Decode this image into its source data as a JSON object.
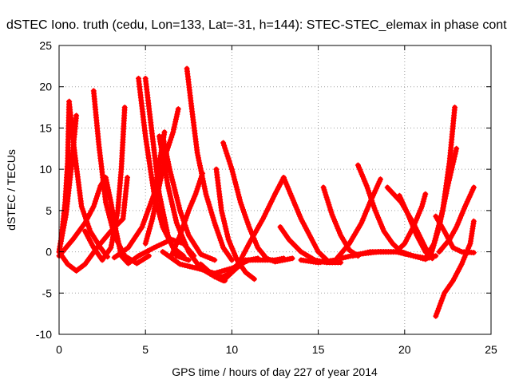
{
  "chart_data": {
    "type": "scatter",
    "title": "dSTEC Iono. truth (cedu, Lon=133, Lat=-31, h=144): STEC-STEC_elemax in phase cont",
    "xlabel": "GPS time / hours of day 227 of year 2014",
    "ylabel": "dSTEC  / TECUs",
    "xlim": [
      0,
      25
    ],
    "ylim": [
      -10,
      25
    ],
    "xticks": [
      "0",
      "5",
      "10",
      "15",
      "20",
      "25"
    ],
    "yticks": [
      "-10",
      "-5",
      "0",
      "5",
      "10",
      "15",
      "20",
      "25"
    ],
    "grid": true,
    "marker": "+",
    "color": "#ff0000",
    "series": [
      {
        "points": [
          [
            0.0,
            0.0
          ],
          [
            0.15,
            2.0
          ],
          [
            0.35,
            6.0
          ],
          [
            0.5,
            11.0
          ],
          [
            0.58,
            18.2
          ]
        ]
      },
      {
        "points": [
          [
            0.58,
            18.2
          ],
          [
            0.9,
            12.0
          ],
          [
            1.3,
            5.5
          ],
          [
            1.8,
            2.5
          ],
          [
            2.4,
            0.5
          ],
          [
            2.8,
            -0.6
          ]
        ]
      },
      {
        "points": [
          [
            0.0,
            0.0
          ],
          [
            0.4,
            4.5
          ],
          [
            0.7,
            10.0
          ],
          [
            1.0,
            16.5
          ]
        ]
      },
      {
        "points": [
          [
            0.0,
            0.0
          ],
          [
            0.5,
            -1.5
          ],
          [
            1.0,
            -2.3
          ],
          [
            1.5,
            -1.5
          ],
          [
            2.2,
            0.5
          ],
          [
            3.0,
            2.5
          ],
          [
            3.7,
            4.0
          ],
          [
            3.95,
            9.0
          ]
        ]
      },
      {
        "points": [
          [
            0.0,
            -0.5
          ],
          [
            0.8,
            1.5
          ],
          [
            1.5,
            3.5
          ],
          [
            2.0,
            5.5
          ],
          [
            2.4,
            8.0
          ],
          [
            2.7,
            9.0
          ],
          [
            3.0,
            6.0
          ],
          [
            3.3,
            2.5
          ],
          [
            3.6,
            -0.5
          ],
          [
            4.0,
            -1.4
          ],
          [
            4.6,
            -0.5
          ],
          [
            5.5,
            0.5
          ],
          [
            6.5,
            1.5
          ],
          [
            7.2,
            1.0
          ],
          [
            7.8,
            -0.5
          ]
        ]
      },
      {
        "points": [
          [
            1.5,
            2.5
          ],
          [
            2.0,
            0.5
          ],
          [
            2.5,
            -1.0
          ],
          [
            3.0,
            0.5
          ],
          [
            3.4,
            5.0
          ],
          [
            3.6,
            10.0
          ],
          [
            3.8,
            17.5
          ]
        ]
      },
      {
        "points": [
          [
            2.0,
            19.5
          ],
          [
            2.3,
            13.0
          ],
          [
            2.7,
            6.0
          ],
          [
            3.2,
            2.0
          ],
          [
            3.8,
            -0.5
          ],
          [
            4.5,
            -1.4
          ],
          [
            5.2,
            -0.5
          ]
        ]
      },
      {
        "points": [
          [
            4.6,
            21.0
          ],
          [
            5.0,
            14.0
          ],
          [
            5.5,
            7.0
          ],
          [
            6.0,
            3.0
          ],
          [
            6.6,
            0.5
          ],
          [
            7.2,
            -0.5
          ]
        ]
      },
      {
        "points": [
          [
            5.0,
            21.0
          ],
          [
            5.4,
            14.0
          ],
          [
            5.8,
            7.0
          ],
          [
            6.3,
            2.0
          ],
          [
            6.8,
            -0.5
          ],
          [
            7.5,
            -1.0
          ]
        ]
      },
      {
        "points": [
          [
            5.0,
            1.0
          ],
          [
            5.4,
            4.0
          ],
          [
            5.8,
            8.0
          ],
          [
            6.2,
            12.0
          ],
          [
            6.6,
            14.5
          ],
          [
            6.9,
            17.3
          ]
        ]
      },
      {
        "points": [
          [
            3.2,
            -0.7
          ],
          [
            4.0,
            0.5
          ],
          [
            4.8,
            3.0
          ],
          [
            5.5,
            7.0
          ],
          [
            5.9,
            12.0
          ],
          [
            6.1,
            14.5
          ]
        ]
      },
      {
        "points": [
          [
            5.8,
            14.0
          ],
          [
            6.3,
            8.0
          ],
          [
            6.8,
            3.5
          ],
          [
            7.5,
            0.0
          ],
          [
            8.2,
            -2.0
          ],
          [
            9.0,
            -3.0
          ],
          [
            9.6,
            -3.5
          ]
        ]
      },
      {
        "points": [
          [
            7.4,
            22.2
          ],
          [
            7.7,
            17.0
          ],
          [
            8.0,
            12.0
          ],
          [
            8.5,
            7.0
          ],
          [
            9.0,
            3.5
          ],
          [
            9.5,
            0.5
          ],
          [
            10.0,
            -1.0
          ]
        ]
      },
      {
        "points": [
          [
            6.0,
            14.0
          ],
          [
            6.4,
            10.0
          ],
          [
            7.0,
            5.0
          ],
          [
            7.5,
            2.0
          ],
          [
            8.2,
            -0.3
          ],
          [
            9.0,
            -1.0
          ]
        ]
      },
      {
        "points": [
          [
            6.5,
            -0.5
          ],
          [
            7.0,
            2.0
          ],
          [
            7.5,
            5.0
          ],
          [
            7.9,
            7.0
          ],
          [
            8.3,
            9.5
          ]
        ]
      },
      {
        "points": [
          [
            6.0,
            0.0
          ],
          [
            7.0,
            -1.5
          ],
          [
            8.0,
            -2.0
          ],
          [
            9.0,
            -2.6
          ],
          [
            10.0,
            -2.0
          ],
          [
            11.0,
            -1.0
          ],
          [
            11.5,
            -0.8
          ]
        ]
      },
      {
        "points": [
          [
            9.1,
            10.0
          ],
          [
            9.4,
            5.0
          ],
          [
            9.8,
            1.5
          ],
          [
            10.3,
            -1.0
          ],
          [
            10.8,
            -2.5
          ],
          [
            11.3,
            -3.3
          ]
        ]
      },
      {
        "points": [
          [
            9.5,
            13.2
          ],
          [
            10.0,
            10.0
          ],
          [
            10.5,
            6.0
          ],
          [
            11.0,
            3.0
          ],
          [
            11.5,
            0.5
          ],
          [
            12.0,
            -0.8
          ],
          [
            12.5,
            -1.2
          ],
          [
            13.5,
            -0.8
          ]
        ]
      },
      {
        "points": [
          [
            9.0,
            -3.0
          ],
          [
            9.5,
            -3.0
          ],
          [
            10.0,
            -2.5
          ],
          [
            10.5,
            -1.0
          ],
          [
            11.0,
            1.0
          ],
          [
            11.8,
            4.0
          ],
          [
            12.5,
            7.0
          ],
          [
            13.0,
            9.0
          ]
        ]
      },
      {
        "points": [
          [
            8.2,
            -1.5
          ],
          [
            9.0,
            -3.0
          ],
          [
            9.5,
            -3.5
          ],
          [
            10.0,
            -2.5
          ],
          [
            10.8,
            -1.0
          ],
          [
            11.5,
            -1.0
          ],
          [
            12.5,
            -1.0
          ],
          [
            13.0,
            -0.8
          ]
        ]
      },
      {
        "points": [
          [
            13.0,
            9.0
          ],
          [
            13.5,
            6.5
          ],
          [
            14.0,
            4.0
          ],
          [
            14.5,
            2.0
          ],
          [
            15.0,
            0.0
          ],
          [
            15.5,
            -1.0
          ]
        ]
      },
      {
        "points": [
          [
            12.8,
            3.0
          ],
          [
            13.3,
            1.5
          ],
          [
            14.0,
            0.0
          ],
          [
            14.8,
            -1.0
          ],
          [
            15.5,
            -1.3
          ],
          [
            16.3,
            -1.3
          ]
        ]
      },
      {
        "points": [
          [
            15.3,
            7.8
          ],
          [
            15.8,
            4.5
          ],
          [
            16.3,
            2.0
          ],
          [
            16.8,
            0.2
          ],
          [
            17.3,
            -0.5
          ]
        ]
      },
      {
        "points": [
          [
            14.0,
            -1.0
          ],
          [
            15.0,
            -1.3
          ],
          [
            16.0,
            -1.0
          ],
          [
            16.8,
            1.0
          ],
          [
            17.5,
            3.5
          ],
          [
            18.0,
            6.0
          ],
          [
            18.6,
            8.8
          ]
        ]
      },
      {
        "points": [
          [
            17.3,
            10.5
          ],
          [
            17.8,
            8.0
          ],
          [
            18.3,
            5.0
          ],
          [
            18.8,
            2.5
          ],
          [
            19.3,
            1.0
          ],
          [
            19.8,
            0.0
          ],
          [
            20.5,
            -0.5
          ],
          [
            21.2,
            -0.9
          ]
        ]
      },
      {
        "points": [
          [
            16.3,
            -0.8
          ],
          [
            17.3,
            -0.3
          ],
          [
            18.5,
            0.0
          ],
          [
            19.5,
            0.0
          ],
          [
            20.0,
            1.0
          ],
          [
            20.5,
            3.0
          ],
          [
            21.0,
            5.5
          ],
          [
            21.2,
            7.0
          ]
        ]
      },
      {
        "points": [
          [
            17.0,
            -0.5
          ],
          [
            18.0,
            0.0
          ],
          [
            19.5,
            0.0
          ],
          [
            20.5,
            -0.5
          ],
          [
            21.3,
            -0.8
          ],
          [
            21.8,
            -0.5
          ]
        ]
      },
      {
        "points": [
          [
            19.7,
            6.8
          ],
          [
            20.2,
            4.5
          ],
          [
            20.7,
            2.0
          ],
          [
            21.2,
            0.0
          ],
          [
            21.6,
            -0.5
          ]
        ]
      },
      {
        "points": [
          [
            19.0,
            7.8
          ],
          [
            19.8,
            6.0
          ],
          [
            20.5,
            3.5
          ],
          [
            21.2,
            0.5
          ],
          [
            21.6,
            -0.8
          ]
        ]
      },
      {
        "points": [
          [
            21.2,
            -0.8
          ],
          [
            21.7,
            1.0
          ],
          [
            22.2,
            5.0
          ],
          [
            22.6,
            11.0
          ],
          [
            22.9,
            17.5
          ]
        ]
      },
      {
        "points": [
          [
            21.5,
            -0.5
          ],
          [
            22.0,
            3.0
          ],
          [
            22.5,
            8.0
          ],
          [
            23.0,
            12.5
          ]
        ]
      },
      {
        "points": [
          [
            21.8,
            4.3
          ],
          [
            22.3,
            2.5
          ],
          [
            22.8,
            0.5
          ],
          [
            23.3,
            0.0
          ],
          [
            24.0,
            -0.1
          ]
        ]
      },
      {
        "points": [
          [
            22.0,
            0.0
          ],
          [
            22.6,
            1.5
          ],
          [
            23.0,
            3.0
          ],
          [
            23.5,
            5.5
          ],
          [
            24.0,
            7.8
          ]
        ]
      },
      {
        "points": [
          [
            21.8,
            -7.8
          ],
          [
            22.3,
            -5.0
          ],
          [
            22.8,
            -3.5
          ],
          [
            23.3,
            -1.5
          ],
          [
            23.8,
            1.0
          ],
          [
            24.0,
            3.7
          ]
        ]
      }
    ]
  }
}
